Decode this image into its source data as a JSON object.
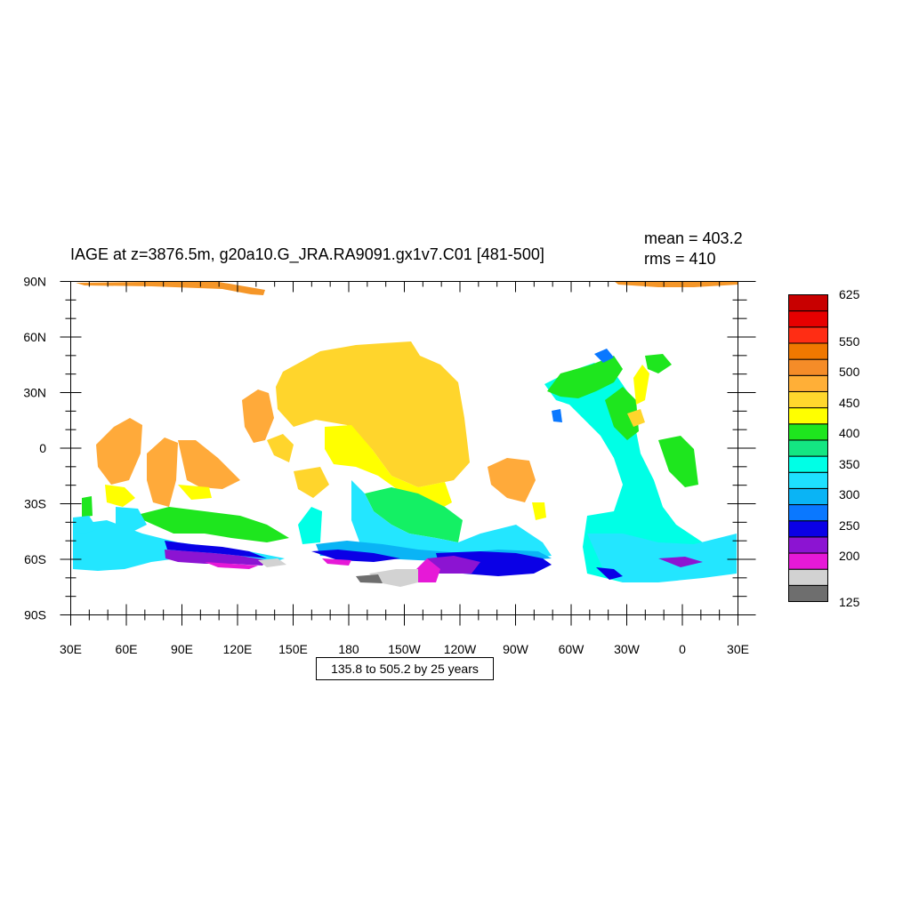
{
  "title": "IAGE at z=3876.5m, g20a10.G_JRA.RA9091.gx1v7.C01 [481-500]",
  "stats": {
    "mean": "mean = 403.2",
    "rms": "rms = 410"
  },
  "contour_info": "135.8 to 505.2 by 25 years",
  "map": {
    "x_ticks": [
      "30E",
      "60E",
      "90E",
      "120E",
      "150E",
      "180",
      "150W",
      "120W",
      "90W",
      "60W",
      "30W",
      "0",
      "30E"
    ],
    "y_ticks": [
      "90N",
      "60N",
      "30N",
      "0",
      "30S",
      "60S",
      "90S"
    ]
  },
  "colorbar": {
    "labels": [
      "625",
      "550",
      "500",
      "450",
      "400",
      "350",
      "300",
      "250",
      "200",
      "125"
    ],
    "colors": [
      "#6e6e6e",
      "#d2d2d2",
      "#e619d7",
      "#8c14d2",
      "#0a00e6",
      "#0a78ff",
      "#0ab4f5",
      "#1ee1ff",
      "#00ffe6",
      "#14e682",
      "#1ee61e",
      "#ffff00",
      "#ffd72d",
      "#ffaf37",
      "#f58c28",
      "#f07800",
      "#ff2d14",
      "#e60000",
      "#c80000"
    ]
  },
  "colors": {
    "salmon_orange": "#f59628",
    "gold": "#ffd52c",
    "light_orange": "#ffaa3a",
    "yellow": "#ffff00",
    "green": "#1ee61e",
    "spring_green": "#14f064",
    "aquamarine": "#00ffe6",
    "cyan": "#23e6ff",
    "sky_blue": "#0ab4f5",
    "azure": "#0a78ff",
    "blue": "#0a00e6",
    "purple": "#8c14d2",
    "magenta": "#e619d7",
    "light_gray": "#d2d2d2",
    "dark_gray": "#6e6e6e"
  }
}
